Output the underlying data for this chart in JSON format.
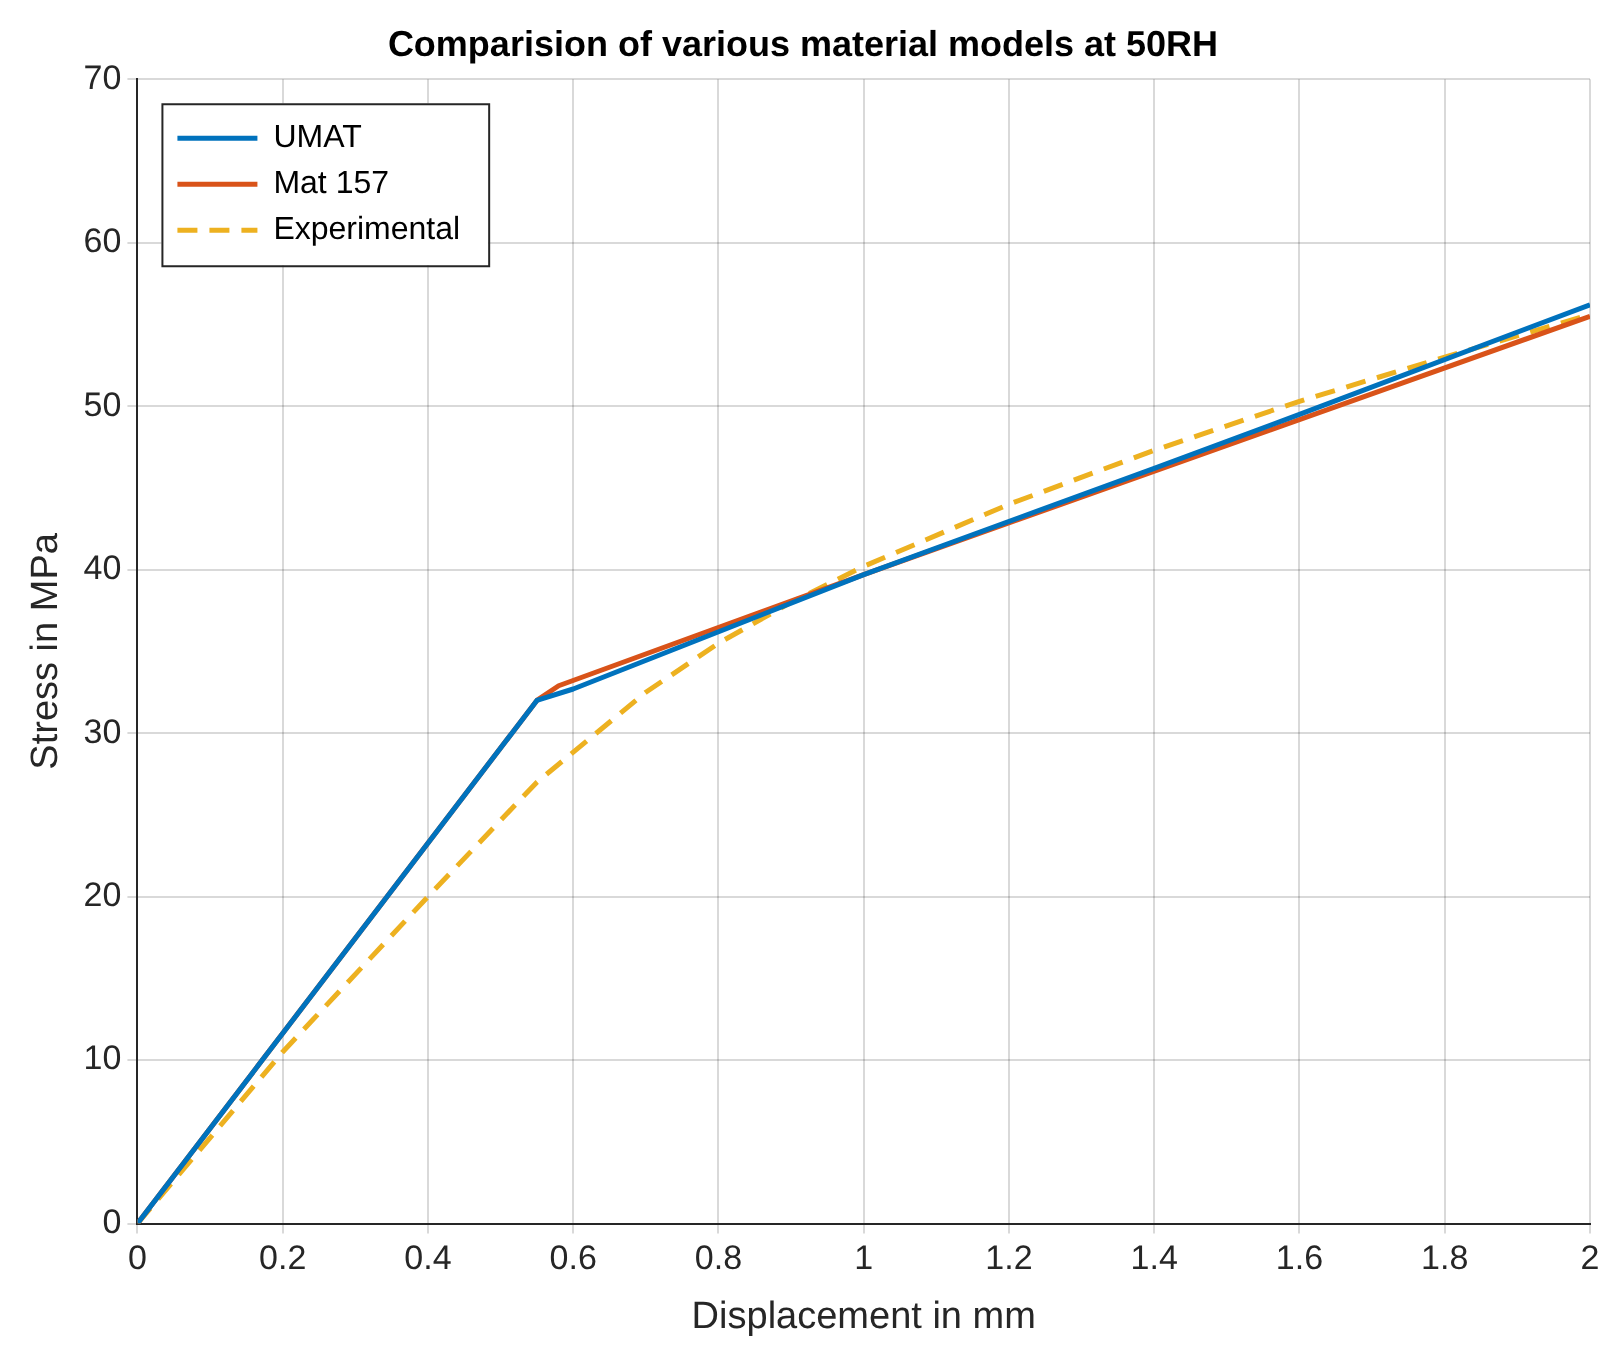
{
  "chart_data": {
    "type": "line",
    "title": "Comparision of various material models at 50RH",
    "xlabel": "Displacement in mm",
    "ylabel": "Stress in MPa",
    "xlim": [
      0,
      2
    ],
    "xticks": [
      0,
      0.2,
      0.4,
      0.6,
      0.8,
      1,
      1.2,
      1.4,
      1.6,
      1.8,
      2
    ],
    "ylim": [
      0,
      70
    ],
    "yticks": [
      0,
      10,
      20,
      30,
      40,
      50,
      60,
      70
    ],
    "grid": true,
    "legend": "top left",
    "marker": "none",
    "series": [
      {
        "name": "UMAT",
        "color": "#0072bd",
        "line_style": "solid",
        "x": [
          0,
          0.55,
          0.6,
          1,
          1.4,
          1.6,
          2
        ],
        "values": [
          0,
          32,
          32.7,
          39.7,
          46.2,
          49.5,
          56.2
        ]
      },
      {
        "name": "Mat 157",
        "color": "#d95319",
        "line_style": "solid",
        "x": [
          0,
          0.55,
          0.58,
          1,
          1.5,
          2
        ],
        "values": [
          0,
          32,
          32.9,
          39.7,
          47.6,
          55.5
        ]
      },
      {
        "name": "Experimental",
        "color": "#edb120",
        "line_style": "dashed",
        "x": [
          0,
          0.2,
          0.4,
          0.55,
          0.7,
          0.8,
          0.9,
          1,
          1.2,
          1.4,
          1.6,
          1.8,
          2
        ],
        "values": [
          0,
          10.5,
          20,
          27,
          32.5,
          35.5,
          38,
          40.2,
          44,
          47.3,
          50.3,
          53,
          55.6
        ]
      }
    ]
  }
}
